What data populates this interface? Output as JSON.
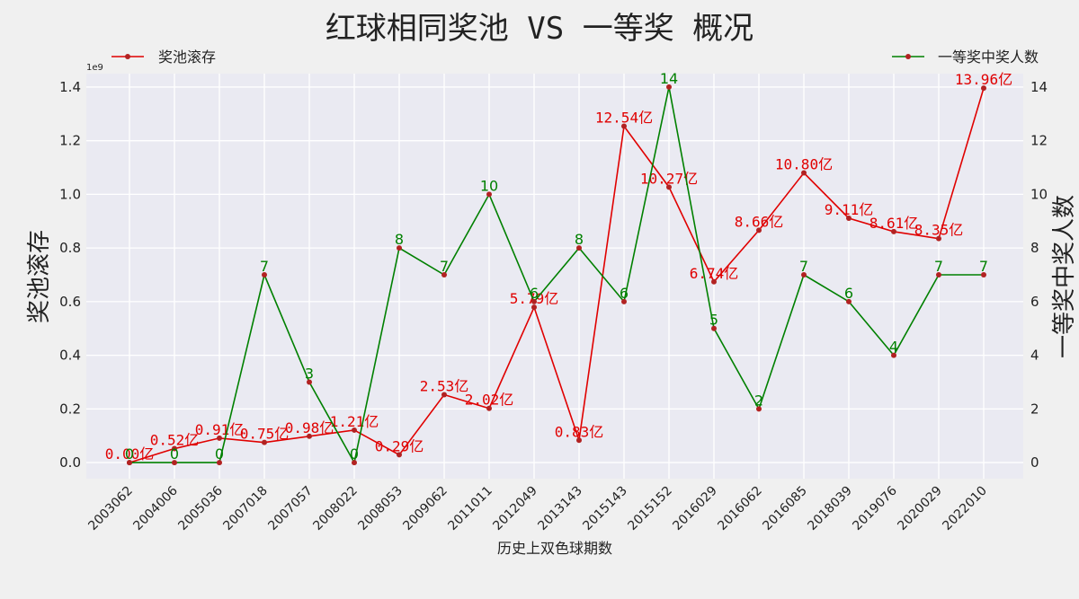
{
  "chart_data": {
    "type": "line",
    "title": "红球相同奖池 VS 一等奖 概况",
    "xlabel": "历史上双色球期数",
    "ylabel_left": "奖池滚存",
    "ylabel_right": "一等奖中奖人数",
    "left_axis_multiplier": "1e9",
    "left_ylim": [
      -0.06,
      1.45
    ],
    "left_ticks": [
      "0.0",
      "0.2",
      "0.4",
      "0.6",
      "0.8",
      "1.0",
      "1.2",
      "1.4"
    ],
    "right_ylim": [
      -0.6,
      14.5
    ],
    "right_ticks": [
      "0",
      "2",
      "4",
      "6",
      "8",
      "10",
      "12",
      "14"
    ],
    "categories": [
      "2003062",
      "2004006",
      "2005036",
      "2007018",
      "2007057",
      "2008022",
      "2008053",
      "2009062",
      "2011011",
      "2012049",
      "2013143",
      "2015143",
      "2015152",
      "2016029",
      "2016062",
      "2016085",
      "2018039",
      "2019076",
      "2020029",
      "2022010"
    ],
    "legend_placement": "top",
    "grid": true,
    "series": [
      {
        "name": "奖池滚存",
        "axis": "left",
        "color": "#e00000",
        "values": [
          0.0,
          0.052,
          0.091,
          0.075,
          0.098,
          0.121,
          0.029,
          0.253,
          0.202,
          0.579,
          0.083,
          1.254,
          1.027,
          0.674,
          0.866,
          1.08,
          0.911,
          0.861,
          0.835,
          1.396
        ],
        "labels": [
          "0.00亿",
          "0.52亿",
          "0.91亿",
          "0.75亿",
          "0.98亿",
          "1.21亿",
          "0.29亿",
          "2.53亿",
          "2.02亿",
          "5.79亿",
          "0.83亿",
          "12.54亿",
          "10.27亿",
          "6.74亿",
          "8.66亿",
          "10.80亿",
          "9.11亿",
          "8.61亿",
          "8.35亿",
          "13.96亿"
        ]
      },
      {
        "name": "一等奖中奖人数",
        "axis": "right",
        "color": "#008000",
        "values": [
          0,
          0,
          0,
          7,
          3,
          0,
          8,
          7,
          10,
          6,
          8,
          6,
          14,
          5,
          2,
          7,
          6,
          4,
          7,
          7
        ],
        "labels": [
          "0",
          "0",
          "0",
          "7",
          "3",
          "0",
          "8",
          "7",
          "10",
          "6",
          "8",
          "6",
          "14",
          "5",
          "2",
          "7",
          "6",
          "4",
          "7",
          "7"
        ]
      }
    ]
  }
}
